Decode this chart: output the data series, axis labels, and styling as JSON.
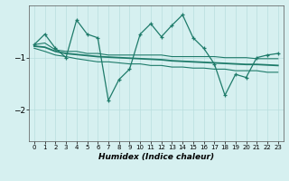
{
  "xlabel": "Humidex (Indice chaleur)",
  "x": [
    0,
    1,
    2,
    3,
    4,
    5,
    6,
    7,
    8,
    9,
    10,
    11,
    12,
    13,
    14,
    15,
    16,
    17,
    18,
    19,
    20,
    21,
    22,
    23
  ],
  "y_main": [
    -0.75,
    -0.55,
    -0.82,
    -1.0,
    -0.28,
    -0.55,
    -0.62,
    -1.82,
    -1.42,
    -1.22,
    -0.55,
    -0.35,
    -0.6,
    -0.38,
    -0.18,
    -0.62,
    -0.82,
    -1.12,
    -1.72,
    -1.32,
    -1.38,
    -1.0,
    -0.95,
    -0.92
  ],
  "y_upper": [
    -0.75,
    -0.72,
    -0.85,
    -0.88,
    -0.88,
    -0.92,
    -0.92,
    -0.95,
    -0.95,
    -0.95,
    -0.95,
    -0.95,
    -0.95,
    -0.98,
    -0.98,
    -0.98,
    -0.98,
    -0.98,
    -1.0,
    -1.0,
    -1.0,
    -1.02,
    -1.02,
    -1.02
  ],
  "y_lower": [
    -0.82,
    -0.88,
    -0.95,
    -0.98,
    -1.02,
    -1.05,
    -1.08,
    -1.08,
    -1.1,
    -1.12,
    -1.12,
    -1.15,
    -1.15,
    -1.18,
    -1.18,
    -1.2,
    -1.2,
    -1.22,
    -1.22,
    -1.25,
    -1.25,
    -1.25,
    -1.28,
    -1.28
  ],
  "y_mid": [
    -0.78,
    -0.8,
    -0.88,
    -0.92,
    -0.94,
    -0.96,
    -0.98,
    -0.99,
    -1.0,
    -1.01,
    -1.02,
    -1.03,
    -1.04,
    -1.06,
    -1.07,
    -1.08,
    -1.09,
    -1.1,
    -1.11,
    -1.12,
    -1.13,
    -1.13,
    -1.14,
    -1.15
  ],
  "line_color": "#1e7b6a",
  "bg_color": "#d6f0f0",
  "grid_color": "#b8dede",
  "xlim": [
    -0.5,
    23.5
  ],
  "ylim": [
    -2.6,
    0.0
  ],
  "yticks": [
    -2,
    -1
  ],
  "xticks": [
    0,
    1,
    2,
    3,
    4,
    5,
    6,
    7,
    8,
    9,
    10,
    11,
    12,
    13,
    14,
    15,
    16,
    17,
    18,
    19,
    20,
    21,
    22,
    23
  ]
}
